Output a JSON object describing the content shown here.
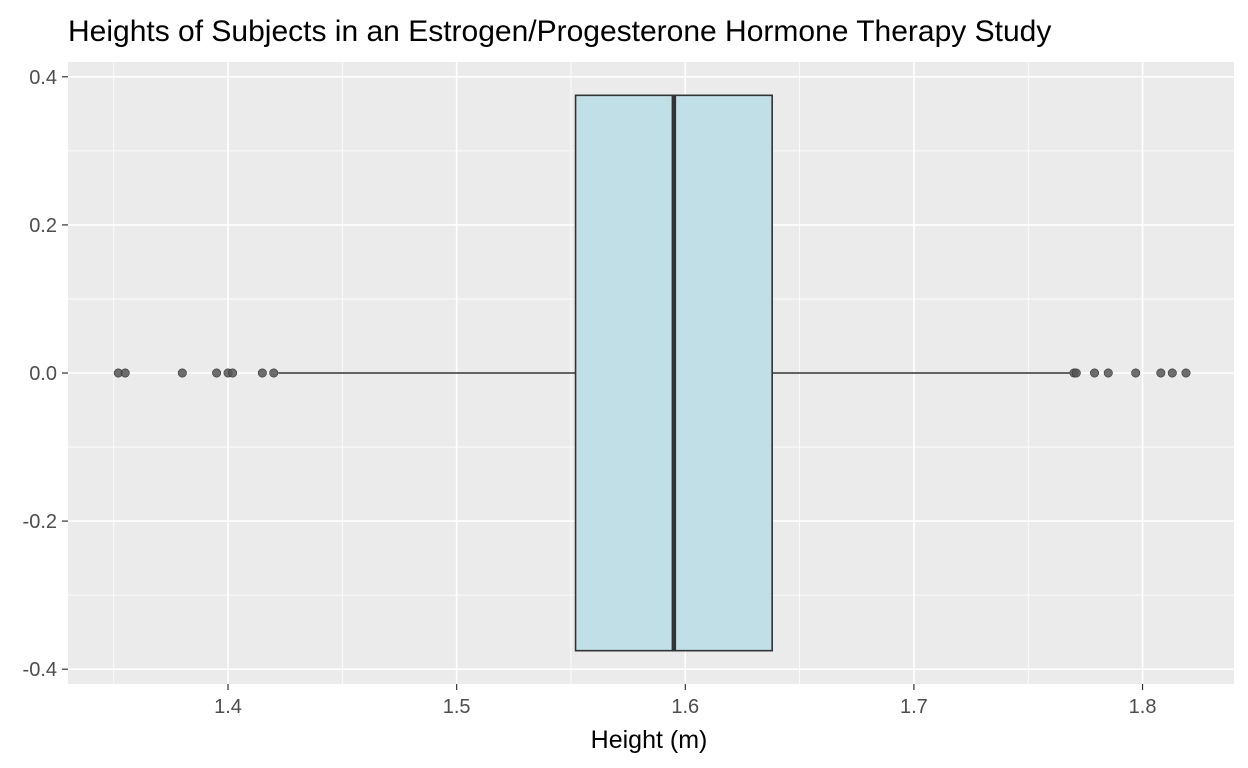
{
  "chart_data": {
    "type": "boxplot",
    "title": "Heights of Subjects in an Estrogen/Progesterone Hormone Therapy Study",
    "xlabel": "Height (m)",
    "ylabel": "",
    "xlim": [
      1.33,
      1.84
    ],
    "ylim": [
      -0.42,
      0.42
    ],
    "x_ticks": [
      1.4,
      1.5,
      1.6,
      1.7,
      1.8
    ],
    "x_tick_labels": [
      "1.4",
      "1.5",
      "1.6",
      "1.7",
      "1.8"
    ],
    "y_ticks": [
      -0.4,
      -0.2,
      0.0,
      0.2,
      0.4
    ],
    "y_tick_labels": [
      "-0.4",
      "-0.2",
      "0.0",
      "0.2",
      "0.4"
    ],
    "box": {
      "lower_whisker": 1.422,
      "q1": 1.552,
      "median": 1.595,
      "q3": 1.638,
      "upper_whisker": 1.768,
      "box_half_height": 0.375
    },
    "outliers": [
      1.352,
      1.355,
      1.38,
      1.395,
      1.4,
      1.402,
      1.415,
      1.42,
      1.77,
      1.771,
      1.779,
      1.785,
      1.797,
      1.808,
      1.813,
      1.819
    ],
    "grid": true,
    "colors": {
      "panel_background": "#ebebeb",
      "grid_major": "#ffffff",
      "box_fill": "#c0dfe7",
      "box_line": "#333333",
      "outlier_fill": "#555555"
    }
  }
}
